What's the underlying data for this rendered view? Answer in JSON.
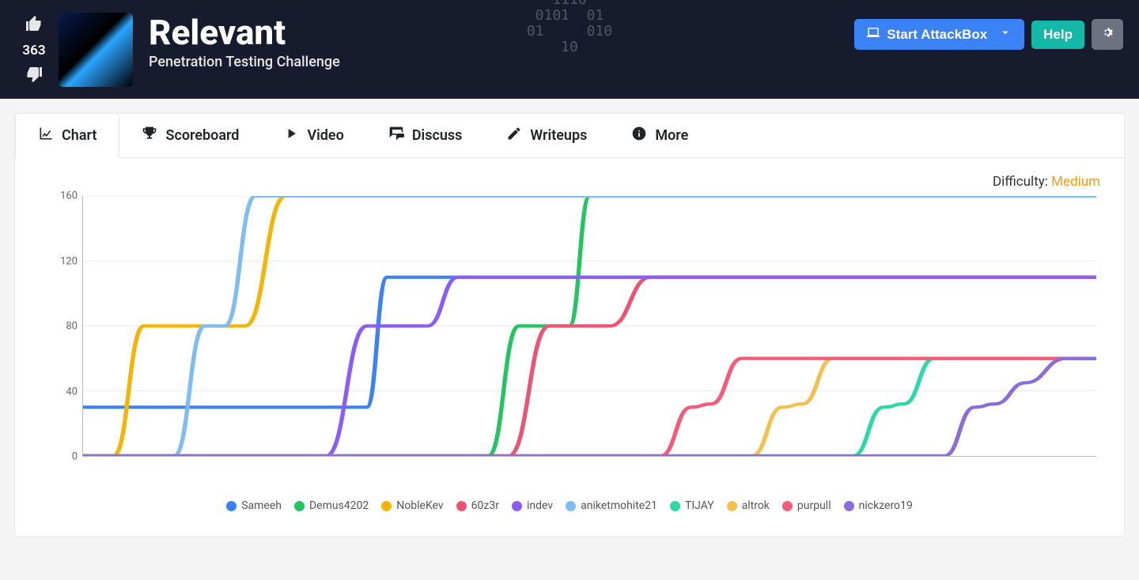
{
  "header": {
    "vote_count": "363",
    "title": "Relevant",
    "subtitle": "Penetration Testing Challenge",
    "bg_text": "1110\n0101  01\n01     010\n10",
    "attackbox_label": "Start AttackBox",
    "help_label": "Help",
    "colors": {
      "bar_bg": "#161c2d",
      "blue": "#3b82f6",
      "teal": "#14b8a6",
      "gray": "#6b7280"
    }
  },
  "tabs": [
    {
      "key": "chart",
      "label": "Chart",
      "icon": "chart-line-icon",
      "active": true
    },
    {
      "key": "scoreboard",
      "label": "Scoreboard",
      "icon": "trophy-icon",
      "active": false
    },
    {
      "key": "video",
      "label": "Video",
      "icon": "play-icon",
      "active": false
    },
    {
      "key": "discuss",
      "label": "Discuss",
      "icon": "comments-icon",
      "active": false
    },
    {
      "key": "writeups",
      "label": "Writeups",
      "icon": "pen-icon",
      "active": false
    },
    {
      "key": "more",
      "label": "More",
      "icon": "info-icon",
      "active": false
    }
  ],
  "difficulty": {
    "prefix": "Difficulty: ",
    "level": "Medium",
    "level_color": "#f39c12"
  },
  "chart": {
    "ylim": [
      0,
      160
    ],
    "yticks": [
      0,
      40,
      80,
      120,
      160
    ],
    "x_range": [
      0,
      100
    ],
    "grid_color": "#e9e9e9",
    "axis_color": "#bbbbbb",
    "line_width": 4.2,
    "background": "#ffffff",
    "series": [
      {
        "name": "Sameeh",
        "color": "#3b82f6",
        "points": [
          [
            0,
            30
          ],
          [
            28,
            30
          ],
          [
            30,
            110
          ],
          [
            100,
            110
          ]
        ]
      },
      {
        "name": "Demus4202",
        "color": "#22c55e",
        "points": [
          [
            0,
            0
          ],
          [
            40,
            0
          ],
          [
            43,
            80
          ],
          [
            48,
            80
          ],
          [
            50,
            160
          ],
          [
            100,
            160
          ]
        ]
      },
      {
        "name": "NobleKev",
        "color": "#f4b400",
        "points": [
          [
            0,
            0
          ],
          [
            3,
            0
          ],
          [
            6,
            80
          ],
          [
            16,
            80
          ],
          [
            20,
            160
          ],
          [
            100,
            160
          ]
        ]
      },
      {
        "name": "60z3r",
        "color": "#ef5373",
        "points": [
          [
            0,
            0
          ],
          [
            42,
            0
          ],
          [
            46,
            80
          ],
          [
            52,
            80
          ],
          [
            56,
            110
          ],
          [
            100,
            110
          ]
        ]
      },
      {
        "name": "indev",
        "color": "#8b5cf6",
        "points": [
          [
            0,
            0
          ],
          [
            24,
            0
          ],
          [
            28,
            80
          ],
          [
            34,
            80
          ],
          [
            37,
            110
          ],
          [
            100,
            110
          ]
        ]
      },
      {
        "name": "aniketmohite21",
        "color": "#7dbdf4",
        "points": [
          [
            0,
            0
          ],
          [
            9,
            0
          ],
          [
            12,
            80
          ],
          [
            14,
            80
          ],
          [
            17,
            160
          ],
          [
            100,
            160
          ]
        ]
      },
      {
        "name": "TIJAY",
        "color": "#2bd9a8",
        "points": [
          [
            0,
            0
          ],
          [
            76,
            0
          ],
          [
            79,
            30
          ],
          [
            81,
            32
          ],
          [
            84,
            60
          ],
          [
            100,
            60
          ]
        ]
      },
      {
        "name": "altrok",
        "color": "#f4c04d",
        "points": [
          [
            0,
            0
          ],
          [
            66,
            0
          ],
          [
            69,
            30
          ],
          [
            71,
            32
          ],
          [
            74,
            60
          ],
          [
            100,
            60
          ]
        ]
      },
      {
        "name": "purpull",
        "color": "#f45b79",
        "points": [
          [
            0,
            0
          ],
          [
            57,
            0
          ],
          [
            60,
            30
          ],
          [
            62,
            32
          ],
          [
            65,
            60
          ],
          [
            100,
            60
          ]
        ]
      },
      {
        "name": "nickzero19",
        "color": "#8b6cd9",
        "points": [
          [
            0,
            0
          ],
          [
            85,
            0
          ],
          [
            88,
            30
          ],
          [
            90,
            32
          ],
          [
            93,
            45
          ],
          [
            97,
            60
          ],
          [
            100,
            60
          ]
        ]
      }
    ]
  }
}
